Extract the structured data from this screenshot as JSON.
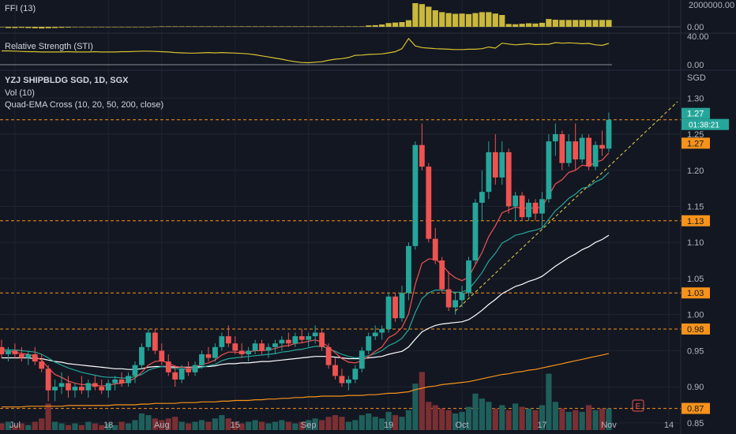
{
  "panes": {
    "ffi": {
      "title": "FFI (13)",
      "ticks": [
        "2000000.00",
        "0.00"
      ]
    },
    "rs": {
      "title": "Relative Strength (STI)",
      "ticks": [
        "40.00",
        "0.00"
      ]
    },
    "main": {
      "title": "YZJ SHIPBLDG SGD, 1D, SGX",
      "vol_title": "Vol (10)",
      "ema_title": "Quad-EMA Cross (10, 20, 50, 200, close)",
      "currency": "SGD"
    }
  },
  "y_axis_ticks": [
    "1.30",
    "1.25",
    "1.20",
    "1.15",
    "1.10",
    "1.05",
    "1.00",
    "0.95",
    "0.90",
    "0.85"
  ],
  "x_axis_ticks": [
    "Jul",
    "18",
    "Aug",
    "15",
    "Sep",
    "19",
    "Oct",
    "17",
    "Nov",
    "14"
  ],
  "price_labels": [
    {
      "text": "1.27",
      "color": "#26a69a"
    },
    {
      "text": "01:38:21",
      "color": "#26a69a"
    },
    {
      "text": "1.27",
      "color": "#f7931a"
    },
    {
      "text": "1.13",
      "color": "#f7931a"
    },
    {
      "text": "1.03",
      "color": "#f7931a"
    },
    {
      "text": "0.98",
      "color": "#f7931a"
    },
    {
      "text": "0.87",
      "color": "#f7931a"
    }
  ],
  "e_badge": "E",
  "colors": {
    "up": "#26a69a",
    "down": "#ef5350",
    "ema10": "#ef5350",
    "ema20": "#26a69a",
    "ema50": "#ffffff",
    "ema200": "#f7931a",
    "level": "#f7931a",
    "ffi": "#c9b83c",
    "rs": "#d6c230",
    "background": "#131722",
    "grid": "#1f2430"
  },
  "chart_data": {
    "type": "candlestick",
    "title": "YZJ SHIPBLDG SGD, 1D, SGX",
    "ylabel": "SGD",
    "ylim": [
      0.84,
      1.32
    ],
    "support_levels": [
      1.27,
      1.13,
      1.03,
      0.98,
      0.87
    ],
    "ohlc": [
      [
        0.955,
        0.965,
        0.94,
        0.945
      ],
      [
        0.945,
        0.955,
        0.935,
        0.95
      ],
      [
        0.95,
        0.96,
        0.94,
        0.945
      ],
      [
        0.945,
        0.955,
        0.935,
        0.94
      ],
      [
        0.94,
        0.95,
        0.93,
        0.945
      ],
      [
        0.945,
        0.955,
        0.93,
        0.935
      ],
      [
        0.935,
        0.945,
        0.92,
        0.925
      ],
      [
        0.925,
        0.93,
        0.88,
        0.895
      ],
      [
        0.895,
        0.91,
        0.88,
        0.9
      ],
      [
        0.9,
        0.92,
        0.89,
        0.905
      ],
      [
        0.905,
        0.915,
        0.885,
        0.895
      ],
      [
        0.895,
        0.905,
        0.885,
        0.9
      ],
      [
        0.9,
        0.915,
        0.89,
        0.895
      ],
      [
        0.895,
        0.91,
        0.885,
        0.905
      ],
      [
        0.905,
        0.915,
        0.895,
        0.9
      ],
      [
        0.9,
        0.91,
        0.89,
        0.895
      ],
      [
        0.895,
        0.91,
        0.885,
        0.905
      ],
      [
        0.905,
        0.915,
        0.895,
        0.91
      ],
      [
        0.91,
        0.92,
        0.9,
        0.905
      ],
      [
        0.905,
        0.92,
        0.9,
        0.915
      ],
      [
        0.915,
        0.935,
        0.905,
        0.93
      ],
      [
        0.93,
        0.96,
        0.925,
        0.955
      ],
      [
        0.955,
        0.98,
        0.95,
        0.975
      ],
      [
        0.975,
        0.98,
        0.945,
        0.95
      ],
      [
        0.95,
        0.96,
        0.93,
        0.935
      ],
      [
        0.935,
        0.945,
        0.915,
        0.92
      ],
      [
        0.92,
        0.93,
        0.9,
        0.91
      ],
      [
        0.91,
        0.93,
        0.905,
        0.925
      ],
      [
        0.925,
        0.935,
        0.915,
        0.92
      ],
      [
        0.92,
        0.935,
        0.915,
        0.93
      ],
      [
        0.93,
        0.95,
        0.925,
        0.945
      ],
      [
        0.945,
        0.955,
        0.935,
        0.94
      ],
      [
        0.94,
        0.96,
        0.935,
        0.955
      ],
      [
        0.955,
        0.975,
        0.95,
        0.97
      ],
      [
        0.97,
        0.985,
        0.955,
        0.96
      ],
      [
        0.96,
        0.97,
        0.945,
        0.95
      ],
      [
        0.95,
        0.96,
        0.94,
        0.945
      ],
      [
        0.945,
        0.955,
        0.935,
        0.95
      ],
      [
        0.95,
        0.965,
        0.945,
        0.96
      ],
      [
        0.96,
        0.965,
        0.945,
        0.95
      ],
      [
        0.95,
        0.96,
        0.94,
        0.955
      ],
      [
        0.955,
        0.965,
        0.945,
        0.96
      ],
      [
        0.96,
        0.97,
        0.95,
        0.965
      ],
      [
        0.965,
        0.975,
        0.955,
        0.96
      ],
      [
        0.96,
        0.975,
        0.955,
        0.97
      ],
      [
        0.97,
        0.98,
        0.96,
        0.965
      ],
      [
        0.965,
        0.975,
        0.955,
        0.97
      ],
      [
        0.97,
        0.985,
        0.96,
        0.975
      ],
      [
        0.975,
        0.98,
        0.95,
        0.955
      ],
      [
        0.955,
        0.96,
        0.925,
        0.93
      ],
      [
        0.93,
        0.94,
        0.91,
        0.915
      ],
      [
        0.915,
        0.925,
        0.9,
        0.905
      ],
      [
        0.905,
        0.915,
        0.895,
        0.91
      ],
      [
        0.91,
        0.93,
        0.905,
        0.925
      ],
      [
        0.925,
        0.955,
        0.92,
        0.95
      ],
      [
        0.95,
        0.975,
        0.945,
        0.97
      ],
      [
        0.97,
        0.985,
        0.965,
        0.975
      ],
      [
        0.975,
        0.985,
        0.965,
        0.98
      ],
      [
        0.98,
        1.03,
        0.975,
        1.025
      ],
      [
        1.025,
        1.03,
        0.99,
        0.995
      ],
      [
        0.995,
        1.04,
        0.99,
        1.03
      ],
      [
        1.03,
        1.1,
        1.02,
        1.095
      ],
      [
        1.095,
        1.24,
        1.09,
        1.235
      ],
      [
        1.235,
        1.265,
        1.2,
        1.205
      ],
      [
        1.205,
        1.21,
        1.1,
        1.105
      ],
      [
        1.105,
        1.12,
        1.07,
        1.075
      ],
      [
        1.075,
        1.08,
        1.03,
        1.035
      ],
      [
        1.035,
        1.06,
        1.005,
        1.01
      ],
      [
        1.01,
        1.03,
        1.0,
        1.02
      ],
      [
        1.02,
        1.04,
        1.01,
        1.03
      ],
      [
        1.03,
        1.08,
        1.025,
        1.075
      ],
      [
        1.075,
        1.16,
        1.07,
        1.155
      ],
      [
        1.155,
        1.2,
        1.13,
        1.17
      ],
      [
        1.17,
        1.24,
        1.16,
        1.225
      ],
      [
        1.225,
        1.25,
        1.18,
        1.19
      ],
      [
        1.19,
        1.24,
        1.18,
        1.225
      ],
      [
        1.225,
        1.23,
        1.14,
        1.15
      ],
      [
        1.15,
        1.17,
        1.13,
        1.165
      ],
      [
        1.165,
        1.17,
        1.13,
        1.135
      ],
      [
        1.135,
        1.16,
        1.13,
        1.155
      ],
      [
        1.155,
        1.16,
        1.13,
        1.14
      ],
      [
        1.14,
        1.17,
        1.12,
        1.16
      ],
      [
        1.16,
        1.25,
        1.155,
        1.24
      ],
      [
        1.24,
        1.265,
        1.22,
        1.25
      ],
      [
        1.25,
        1.255,
        1.2,
        1.21
      ],
      [
        1.21,
        1.25,
        1.205,
        1.24
      ],
      [
        1.24,
        1.265,
        1.2,
        1.215
      ],
      [
        1.215,
        1.25,
        1.21,
        1.245
      ],
      [
        1.245,
        1.25,
        1.2,
        1.205
      ],
      [
        1.205,
        1.24,
        1.2,
        1.235
      ],
      [
        1.235,
        1.255,
        1.22,
        1.23
      ],
      [
        1.23,
        1.28,
        1.225,
        1.27
      ]
    ],
    "volume": [
      4,
      5,
      3,
      4,
      3,
      5,
      7,
      16,
      5,
      4,
      3,
      4,
      3,
      5,
      4,
      3,
      4,
      3,
      5,
      4,
      6,
      10,
      9,
      7,
      6,
      7,
      8,
      5,
      4,
      5,
      6,
      5,
      7,
      9,
      7,
      5,
      4,
      5,
      6,
      5,
      4,
      5,
      6,
      5,
      4,
      5,
      6,
      7,
      6,
      8,
      9,
      8,
      5,
      6,
      9,
      10,
      8,
      7,
      11,
      9,
      8,
      12,
      28,
      35,
      17,
      15,
      13,
      12,
      10,
      11,
      14,
      22,
      19,
      17,
      13,
      15,
      12,
      16,
      14,
      13,
      12,
      15,
      34,
      17,
      13,
      11,
      12,
      11,
      15,
      12,
      13,
      13
    ],
    "ema10": [
      0.95,
      0.949,
      0.948,
      0.946,
      0.945,
      0.942,
      0.937,
      0.926,
      0.917,
      0.913,
      0.908,
      0.905,
      0.903,
      0.903,
      0.902,
      0.901,
      0.902,
      0.904,
      0.905,
      0.907,
      0.912,
      0.92,
      0.93,
      0.935,
      0.936,
      0.933,
      0.928,
      0.927,
      0.926,
      0.927,
      0.931,
      0.933,
      0.937,
      0.944,
      0.948,
      0.948,
      0.947,
      0.948,
      0.95,
      0.95,
      0.951,
      0.953,
      0.956,
      0.957,
      0.96,
      0.961,
      0.963,
      0.965,
      0.962,
      0.955,
      0.947,
      0.939,
      0.934,
      0.933,
      0.936,
      0.942,
      0.949,
      0.955,
      0.968,
      0.973,
      0.982,
      1.001,
      1.042,
      1.071,
      1.077,
      1.077,
      1.069,
      1.058,
      1.051,
      1.047,
      1.052,
      1.069,
      1.086,
      1.108,
      1.123,
      1.141,
      1.145,
      1.149,
      1.147,
      1.148,
      1.147,
      1.149,
      1.165,
      1.181,
      1.187,
      1.197,
      1.2,
      1.207,
      1.206,
      1.211,
      1.214,
      1.224
    ],
    "ema20": [
      0.952,
      0.951,
      0.951,
      0.95,
      0.949,
      0.948,
      0.945,
      0.94,
      0.934,
      0.93,
      0.926,
      0.923,
      0.92,
      0.918,
      0.916,
      0.914,
      0.913,
      0.913,
      0.912,
      0.912,
      0.914,
      0.917,
      0.923,
      0.926,
      0.928,
      0.927,
      0.925,
      0.925,
      0.924,
      0.925,
      0.927,
      0.929,
      0.931,
      0.936,
      0.939,
      0.94,
      0.941,
      0.942,
      0.943,
      0.944,
      0.945,
      0.946,
      0.948,
      0.949,
      0.951,
      0.952,
      0.954,
      0.956,
      0.956,
      0.953,
      0.949,
      0.945,
      0.942,
      0.94,
      0.941,
      0.943,
      0.946,
      0.95,
      0.957,
      0.961,
      0.967,
      0.979,
      1.003,
      1.022,
      1.03,
      1.034,
      1.034,
      1.032,
      1.031,
      1.031,
      1.035,
      1.046,
      1.058,
      1.074,
      1.085,
      1.099,
      1.104,
      1.11,
      1.112,
      1.115,
      1.117,
      1.12,
      1.132,
      1.144,
      1.152,
      1.161,
      1.167,
      1.175,
      1.177,
      1.184,
      1.188,
      1.197
    ],
    "ema50": [
      0.94,
      0.94,
      0.94,
      0.94,
      0.94,
      0.939,
      0.939,
      0.937,
      0.935,
      0.934,
      0.932,
      0.931,
      0.93,
      0.929,
      0.928,
      0.927,
      0.926,
      0.925,
      0.925,
      0.924,
      0.924,
      0.925,
      0.927,
      0.928,
      0.928,
      0.928,
      0.927,
      0.927,
      0.927,
      0.927,
      0.928,
      0.928,
      0.929,
      0.931,
      0.932,
      0.932,
      0.933,
      0.933,
      0.934,
      0.935,
      0.935,
      0.936,
      0.937,
      0.938,
      0.939,
      0.94,
      0.941,
      0.942,
      0.942,
      0.942,
      0.941,
      0.94,
      0.939,
      0.939,
      0.939,
      0.94,
      0.941,
      0.942,
      0.945,
      0.947,
      0.949,
      0.955,
      0.966,
      0.976,
      0.981,
      0.985,
      0.987,
      0.988,
      0.989,
      0.99,
      0.993,
      0.999,
      1.006,
      1.014,
      1.021,
      1.029,
      1.034,
      1.039,
      1.042,
      1.046,
      1.049,
      1.053,
      1.06,
      1.067,
      1.073,
      1.079,
      1.084,
      1.09,
      1.094,
      1.1,
      1.104,
      1.11
    ],
    "ema200": [
      0.872,
      0.872,
      0.872,
      0.872,
      0.873,
      0.873,
      0.873,
      0.873,
      0.873,
      0.873,
      0.874,
      0.874,
      0.874,
      0.874,
      0.874,
      0.874,
      0.874,
      0.875,
      0.875,
      0.875,
      0.875,
      0.876,
      0.876,
      0.877,
      0.877,
      0.877,
      0.877,
      0.878,
      0.878,
      0.878,
      0.879,
      0.879,
      0.879,
      0.88,
      0.88,
      0.881,
      0.881,
      0.881,
      0.882,
      0.882,
      0.883,
      0.883,
      0.884,
      0.884,
      0.885,
      0.885,
      0.886,
      0.886,
      0.887,
      0.887,
      0.887,
      0.887,
      0.888,
      0.888,
      0.888,
      0.889,
      0.889,
      0.89,
      0.891,
      0.891,
      0.892,
      0.893,
      0.896,
      0.898,
      0.9,
      0.901,
      0.903,
      0.904,
      0.905,
      0.906,
      0.907,
      0.909,
      0.911,
      0.913,
      0.915,
      0.917,
      0.918,
      0.92,
      0.921,
      0.923,
      0.924,
      0.926,
      0.928,
      0.93,
      0.932,
      0.934,
      0.936,
      0.938,
      0.94,
      0.942,
      0.944,
      0.946
    ],
    "ffi": [
      0,
      -0.05,
      -0.05,
      -0.04,
      -0.05,
      -0.06,
      -0.07,
      -0.06,
      -0.05,
      -0.04,
      -0.03,
      -0.02,
      -0.02,
      -0.02,
      -0.02,
      -0.02,
      -0.01,
      -0.01,
      -0.01,
      -0.01,
      -0.01,
      -0.01,
      -0.01,
      0.01,
      0.02,
      0.02,
      0.02,
      0.02,
      0.02,
      0.02,
      0.02,
      0.02,
      0.02,
      0.02,
      0.02,
      0.02,
      0.02,
      0.02,
      0.02,
      0.02,
      0.02,
      0.02,
      0.02,
      0.02,
      0.02,
      0.02,
      0.02,
      0.02,
      0.02,
      0.02,
      0.02,
      0.02,
      0.02,
      0.02,
      0.02,
      0.06,
      0.07,
      0.1,
      0.16,
      0.18,
      0.2,
      0.28,
      1.0,
      0.96,
      0.85,
      0.7,
      0.62,
      0.58,
      0.55,
      0.56,
      0.54,
      0.58,
      0.62,
      0.62,
      0.56,
      0.5,
      0.12,
      0.11,
      0.13,
      0.15,
      0.14,
      0.17,
      0.33,
      0.3,
      0.29,
      0.29,
      0.29,
      0.29,
      0.29,
      0.29,
      0.29,
      0.29
    ],
    "rs": [
      0.5,
      0.5,
      0.49,
      0.48,
      0.47,
      0.47,
      0.46,
      0.46,
      0.46,
      0.46,
      0.47,
      0.46,
      0.46,
      0.46,
      0.47,
      0.46,
      0.46,
      0.46,
      0.47,
      0.47,
      0.48,
      0.49,
      0.49,
      0.48,
      0.47,
      0.46,
      0.44,
      0.43,
      0.42,
      0.42,
      0.43,
      0.44,
      0.43,
      0.44,
      0.43,
      0.42,
      0.41,
      0.39,
      0.36,
      0.32,
      0.28,
      0.24,
      0.2,
      0.15,
      0.11,
      0.08,
      0.07,
      0.09,
      0.11,
      0.16,
      0.2,
      0.22,
      0.26,
      0.34,
      0.35,
      0.37,
      0.38,
      0.39,
      0.43,
      0.47,
      0.58,
      0.95,
      0.68,
      0.62,
      0.6,
      0.58,
      0.57,
      0.56,
      0.55,
      0.55,
      0.56,
      0.56,
      0.58,
      0.64,
      0.6,
      0.78,
      0.75,
      0.72,
      0.74,
      0.76,
      0.73,
      0.74,
      0.74,
      0.8,
      0.78,
      0.79,
      0.78,
      0.76,
      0.77,
      0.72,
      0.7,
      0.77
    ],
    "x_ticks": [
      "Jul",
      "18",
      "Aug",
      "15",
      "Sep",
      "19",
      "Oct",
      "17",
      "Nov",
      "14"
    ],
    "y_ticks": [
      1.3,
      1.25,
      1.2,
      1.15,
      1.1,
      1.05,
      1.0,
      0.95,
      0.9,
      0.85
    ],
    "grid": true
  }
}
